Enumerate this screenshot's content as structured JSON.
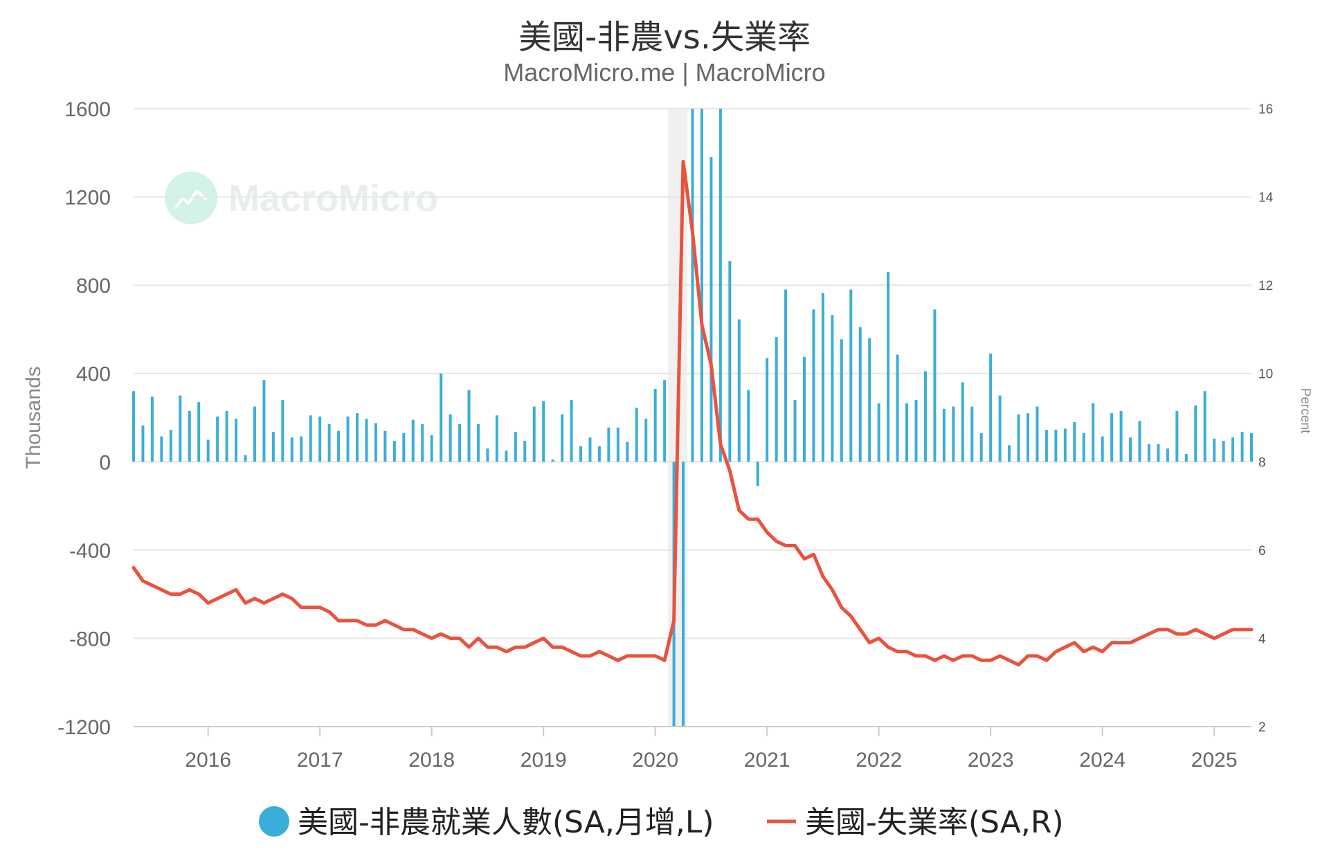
{
  "title": "美國-非農vs.失業率",
  "subtitle": "MacroMicro.me | MacroMicro",
  "watermark": "MacroMicro",
  "colors": {
    "bars": "#3aaed8",
    "line": "#e9533e",
    "grid": "#e6e6e6",
    "recession_band": "#f0f0f0",
    "watermark": "#d3f2ea"
  },
  "chart_data": {
    "type": "bar+line",
    "left_axis": {
      "label": "Thousands",
      "range": [
        -1200,
        1600
      ],
      "ticks": [
        "1600",
        "1200",
        "800",
        "400",
        "0",
        "-400",
        "-800",
        "-1200"
      ]
    },
    "right_axis": {
      "label": "Percent",
      "range": [
        2,
        16
      ],
      "ticks": [
        "16",
        "14",
        "12",
        "10",
        "8",
        "6",
        "4",
        "2"
      ]
    },
    "x_axis": {
      "range": [
        "2015-05",
        "2025-05"
      ],
      "ticks": [
        "2016",
        "2017",
        "2018",
        "2019",
        "2020",
        "2021",
        "2022",
        "2023",
        "2024",
        "2025"
      ]
    },
    "shaded_period": [
      "2020-02",
      "2020-04"
    ],
    "legend": [
      "美國-非農就業人數(SA,月增,L)",
      "美國-失業率(SA,R)"
    ],
    "series": [
      {
        "name": "美國-非農就業人數(SA,月增,L)",
        "type": "bar",
        "axis": "left",
        "start": "2015-05",
        "values": [
          320,
          165,
          295,
          115,
          145,
          300,
          230,
          270,
          100,
          205,
          230,
          195,
          30,
          250,
          370,
          135,
          280,
          110,
          115,
          210,
          205,
          170,
          140,
          205,
          220,
          195,
          175,
          140,
          95,
          130,
          190,
          170,
          120,
          400,
          215,
          170,
          325,
          170,
          60,
          210,
          50,
          135,
          95,
          250,
          275,
          10,
          215,
          280,
          70,
          110,
          70,
          155,
          155,
          90,
          245,
          195,
          330,
          370,
          -1200,
          -1200,
          1600,
          1600,
          1380,
          1600,
          910,
          645,
          325,
          -110,
          470,
          565,
          780,
          280,
          475,
          690,
          765,
          665,
          555,
          780,
          610,
          560,
          265,
          860,
          485,
          265,
          280,
          410,
          690,
          240,
          250,
          360,
          250,
          130,
          490,
          300,
          75,
          215,
          220,
          250,
          145,
          145,
          150,
          180,
          130,
          265,
          115,
          220,
          230,
          110,
          185,
          80,
          80,
          60,
          230,
          35,
          255,
          320,
          105,
          95,
          110,
          135,
          130
        ]
      },
      {
        "name": "美國-失業率(SA,R)",
        "type": "line",
        "axis": "right",
        "start": "2015-05",
        "values": [
          5.6,
          5.3,
          5.2,
          5.1,
          5.0,
          5.0,
          5.1,
          5.0,
          4.8,
          4.9,
          5.0,
          5.1,
          4.8,
          4.9,
          4.8,
          4.9,
          5.0,
          4.9,
          4.7,
          4.7,
          4.7,
          4.6,
          4.4,
          4.4,
          4.4,
          4.3,
          4.3,
          4.4,
          4.3,
          4.2,
          4.2,
          4.1,
          4.0,
          4.1,
          4.0,
          4.0,
          3.8,
          4.0,
          3.8,
          3.8,
          3.7,
          3.8,
          3.8,
          3.9,
          4.0,
          3.8,
          3.8,
          3.7,
          3.6,
          3.6,
          3.7,
          3.6,
          3.5,
          3.6,
          3.6,
          3.6,
          3.6,
          3.5,
          4.4,
          14.8,
          13.2,
          11.1,
          10.2,
          8.4,
          7.8,
          6.9,
          6.7,
          6.7,
          6.4,
          6.2,
          6.1,
          6.1,
          5.8,
          5.9,
          5.4,
          5.1,
          4.7,
          4.5,
          4.2,
          3.9,
          4.0,
          3.8,
          3.7,
          3.7,
          3.6,
          3.6,
          3.5,
          3.6,
          3.5,
          3.6,
          3.6,
          3.5,
          3.5,
          3.6,
          3.5,
          3.4,
          3.6,
          3.6,
          3.5,
          3.7,
          3.8,
          3.9,
          3.7,
          3.8,
          3.7,
          3.9,
          3.9,
          3.9,
          4.0,
          4.1,
          4.2,
          4.2,
          4.1,
          4.1,
          4.2,
          4.1,
          4.0,
          4.1,
          4.2,
          4.2,
          4.2
        ]
      }
    ]
  }
}
